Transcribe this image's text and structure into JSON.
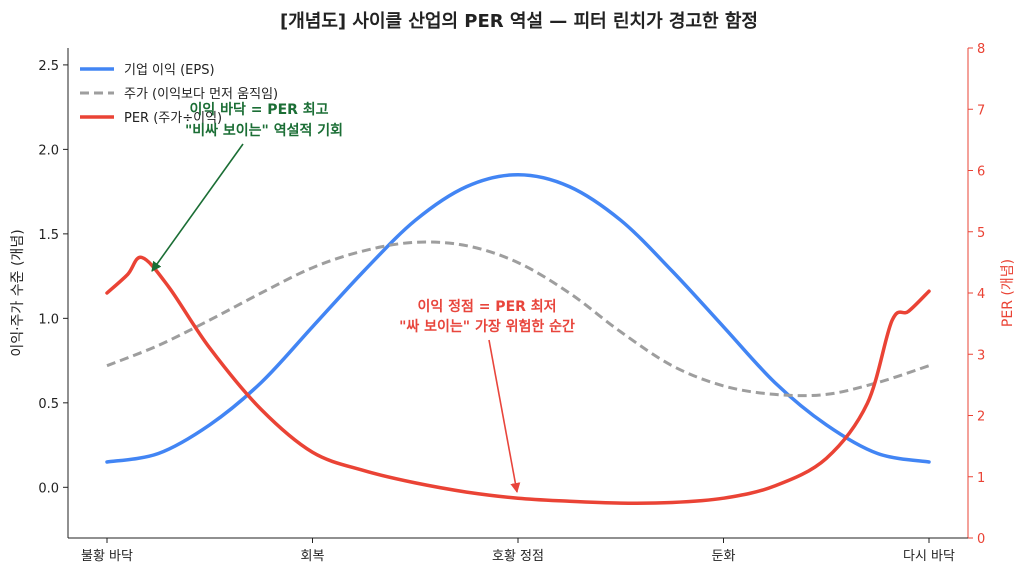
{
  "chart_data": {
    "type": "line",
    "title": "[개념도] 사이클 산업의 PER 역설 — 피터 린치가 경고한 함정",
    "x": [
      0,
      1,
      2,
      3,
      4
    ],
    "x_tick_labels": [
      "불황 바닥",
      "회복",
      "호황 정점",
      "둔화",
      "다시 바닥"
    ],
    "ylabel_left": "이익·주가 수준 (개념)",
    "ylabel_right": "PER (개념)",
    "ylim_left": [
      -0.3,
      2.6
    ],
    "ylim_right": [
      0,
      8
    ],
    "yticks_left": [
      "0.0",
      "0.5",
      "1.0",
      "1.5",
      "2.0",
      "2.5"
    ],
    "yticks_right": [
      "0",
      "1",
      "2",
      "3",
      "4",
      "5",
      "6",
      "7",
      "8"
    ],
    "legend_placement": "top-left",
    "grid": false,
    "series": [
      {
        "name": "기업 이익 (EPS)",
        "axis": "left",
        "color": "#4285f4",
        "style": "solid",
        "points": [
          [
            0,
            0.15
          ],
          [
            0.25,
            0.2
          ],
          [
            0.5,
            0.37
          ],
          [
            0.75,
            0.62
          ],
          [
            1,
            0.95
          ],
          [
            1.25,
            1.28
          ],
          [
            1.5,
            1.58
          ],
          [
            1.75,
            1.78
          ],
          [
            2,
            1.85
          ],
          [
            2.25,
            1.78
          ],
          [
            2.5,
            1.58
          ],
          [
            2.75,
            1.28
          ],
          [
            3,
            0.95
          ],
          [
            3.25,
            0.62
          ],
          [
            3.5,
            0.37
          ],
          [
            3.75,
            0.2
          ],
          [
            4,
            0.15
          ]
        ]
      },
      {
        "name": "주가 (이익보다 먼저 움직임)",
        "axis": "left",
        "color": "#9e9e9e",
        "style": "dashed",
        "points": [
          [
            0,
            0.72
          ],
          [
            0.25,
            0.84
          ],
          [
            0.5,
            0.99
          ],
          [
            0.75,
            1.15
          ],
          [
            1,
            1.3
          ],
          [
            1.25,
            1.4
          ],
          [
            1.5,
            1.45
          ],
          [
            1.75,
            1.43
          ],
          [
            2,
            1.33
          ],
          [
            2.25,
            1.15
          ],
          [
            2.5,
            0.92
          ],
          [
            2.75,
            0.72
          ],
          [
            3,
            0.6
          ],
          [
            3.25,
            0.55
          ],
          [
            3.5,
            0.55
          ],
          [
            3.75,
            0.62
          ],
          [
            4,
            0.72
          ]
        ]
      },
      {
        "name": "PER (주가÷이익)",
        "axis": "right",
        "color": "#ea4335",
        "style": "solid",
        "points": [
          [
            0,
            4.0
          ],
          [
            0.1,
            4.3
          ],
          [
            0.17,
            4.58
          ],
          [
            0.3,
            4.1
          ],
          [
            0.5,
            3.1
          ],
          [
            0.75,
            2.1
          ],
          [
            1,
            1.4
          ],
          [
            1.25,
            1.1
          ],
          [
            1.5,
            0.9
          ],
          [
            1.75,
            0.75
          ],
          [
            2,
            0.65
          ],
          [
            2.25,
            0.6
          ],
          [
            2.5,
            0.57
          ],
          [
            2.75,
            0.58
          ],
          [
            3,
            0.65
          ],
          [
            3.25,
            0.85
          ],
          [
            3.5,
            1.3
          ],
          [
            3.7,
            2.2
          ],
          [
            3.82,
            3.55
          ],
          [
            3.9,
            3.7
          ],
          [
            4,
            4.03
          ]
        ]
      }
    ],
    "annotations": [
      {
        "line1": "이익 바닥 = PER 최고",
        "line2": "\"비싸 보이는\" 역설적 기회",
        "color": "#1b6e35",
        "target": [
          0.2,
          4.4
        ]
      },
      {
        "line1": "이익 정점 = PER 최저",
        "line2": "\"싸 보이는\" 가장 위험한 순간",
        "color": "#e8453c",
        "target": [
          2.0,
          0.72
        ]
      }
    ]
  }
}
